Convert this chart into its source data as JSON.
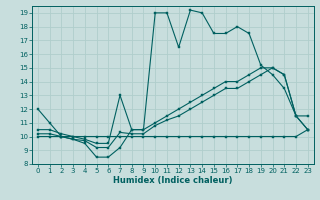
{
  "xlabel": "Humidex (Indice chaleur)",
  "xlim": [
    -0.5,
    23.5
  ],
  "ylim": [
    8,
    19.5
  ],
  "xticks": [
    0,
    1,
    2,
    3,
    4,
    5,
    6,
    7,
    8,
    9,
    10,
    11,
    12,
    13,
    14,
    15,
    16,
    17,
    18,
    19,
    20,
    21,
    22,
    23
  ],
  "yticks": [
    8,
    9,
    10,
    11,
    12,
    13,
    14,
    15,
    16,
    17,
    18,
    19
  ],
  "bg_color": "#c8dedd",
  "grid_color": "#b0cecc",
  "line_color": "#006060",
  "lines": [
    {
      "x": [
        0,
        1,
        2,
        3,
        4,
        5,
        6,
        7,
        8,
        9,
        10,
        11,
        12,
        13,
        14,
        15,
        16,
        17,
        18,
        19,
        20,
        21,
        22,
        23
      ],
      "y": [
        12,
        11,
        10,
        9.8,
        9.5,
        8.5,
        8.5,
        9.2,
        10.5,
        10.5,
        19,
        19,
        16.5,
        19.2,
        19,
        17.5,
        17.5,
        18,
        17.5,
        15.2,
        14.5,
        13.5,
        11.5,
        11.5
      ]
    },
    {
      "x": [
        0,
        1,
        2,
        3,
        4,
        5,
        6,
        7,
        8,
        9,
        10,
        11,
        12,
        13,
        14,
        15,
        16,
        17,
        18,
        19,
        20,
        21,
        22,
        23
      ],
      "y": [
        10,
        10,
        10,
        10,
        10,
        10,
        10,
        10,
        10,
        10,
        10,
        10,
        10,
        10,
        10,
        10,
        10,
        10,
        10,
        10,
        10,
        10,
        10,
        10.5
      ]
    },
    {
      "x": [
        0,
        1,
        2,
        3,
        4,
        5,
        6,
        7,
        8,
        9,
        10,
        11,
        12,
        13,
        14,
        15,
        16,
        17,
        18,
        19,
        20,
        21,
        22,
        23
      ],
      "y": [
        10.5,
        10.5,
        10.2,
        10.0,
        9.8,
        9.5,
        9.5,
        13,
        10.5,
        10.5,
        11,
        11.5,
        12,
        12.5,
        13,
        13.5,
        14,
        14,
        14.5,
        15,
        15,
        14.5,
        11.5,
        10.5
      ]
    },
    {
      "x": [
        0,
        1,
        2,
        3,
        4,
        5,
        6,
        7,
        8,
        9,
        10,
        11,
        12,
        13,
        14,
        15,
        16,
        17,
        18,
        19,
        20,
        21,
        22,
        23
      ],
      "y": [
        10.2,
        10.2,
        10.0,
        9.8,
        9.7,
        9.2,
        9.2,
        10.3,
        10.2,
        10.2,
        10.8,
        11.2,
        11.5,
        12,
        12.5,
        13,
        13.5,
        13.5,
        14,
        14.5,
        15,
        14.5,
        11.5,
        10.5
      ]
    }
  ]
}
